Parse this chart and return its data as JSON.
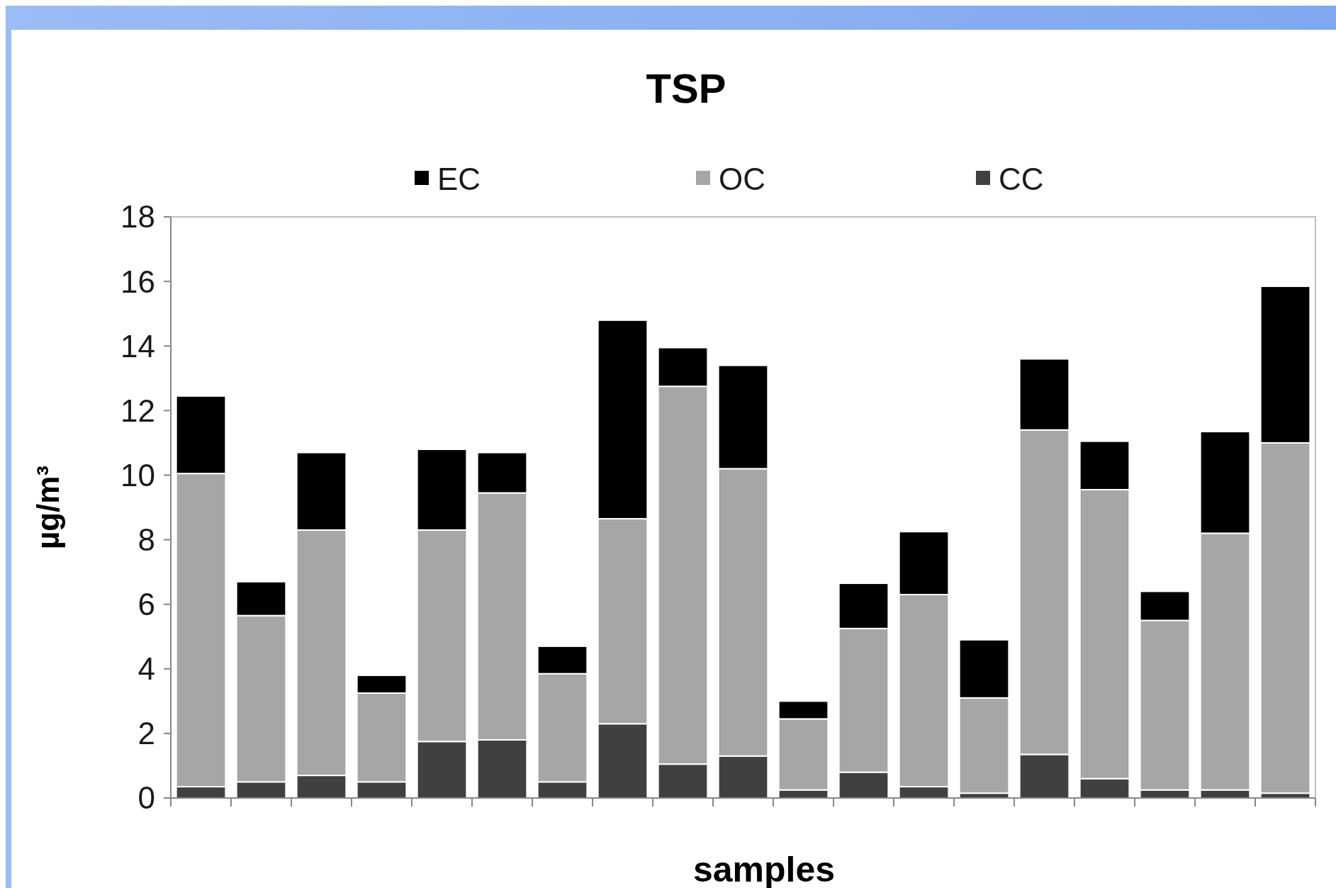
{
  "chart_data": {
    "type": "bar",
    "title": "TSP",
    "xlabel": "samples",
    "ylabel": "µg/m³",
    "stacked": true,
    "legend": "top",
    "grid": false,
    "categories": [
      null,
      null,
      null,
      null,
      null,
      null,
      null,
      null,
      null,
      null,
      null,
      null,
      null,
      null,
      null,
      null,
      null,
      null,
      null
    ],
    "ylim": [
      0,
      18
    ],
    "yticks": [
      0,
      2,
      4,
      6,
      8,
      10,
      12,
      14,
      16,
      18
    ],
    "series": [
      {
        "name": "CC",
        "color": "#404040",
        "values": [
          0.35,
          0.5,
          0.7,
          0.5,
          1.75,
          1.8,
          0.5,
          2.3,
          1.05,
          1.3,
          0.25,
          0.8,
          0.35,
          0.15,
          1.35,
          0.6,
          0.25,
          0.25,
          0.15
        ]
      },
      {
        "name": "OC",
        "color": "#a6a6a6",
        "values": [
          9.7,
          5.15,
          7.6,
          2.75,
          6.55,
          7.65,
          3.35,
          6.35,
          11.7,
          8.9,
          2.2,
          4.45,
          5.95,
          2.95,
          10.05,
          8.95,
          5.25,
          7.95,
          10.85
        ]
      },
      {
        "name": "EC",
        "color": "#000000",
        "values": [
          2.4,
          1.05,
          2.4,
          0.55,
          2.5,
          1.25,
          0.85,
          6.15,
          1.2,
          3.2,
          0.55,
          1.4,
          1.95,
          1.8,
          2.2,
          1.5,
          0.9,
          3.15,
          4.85
        ]
      }
    ]
  }
}
